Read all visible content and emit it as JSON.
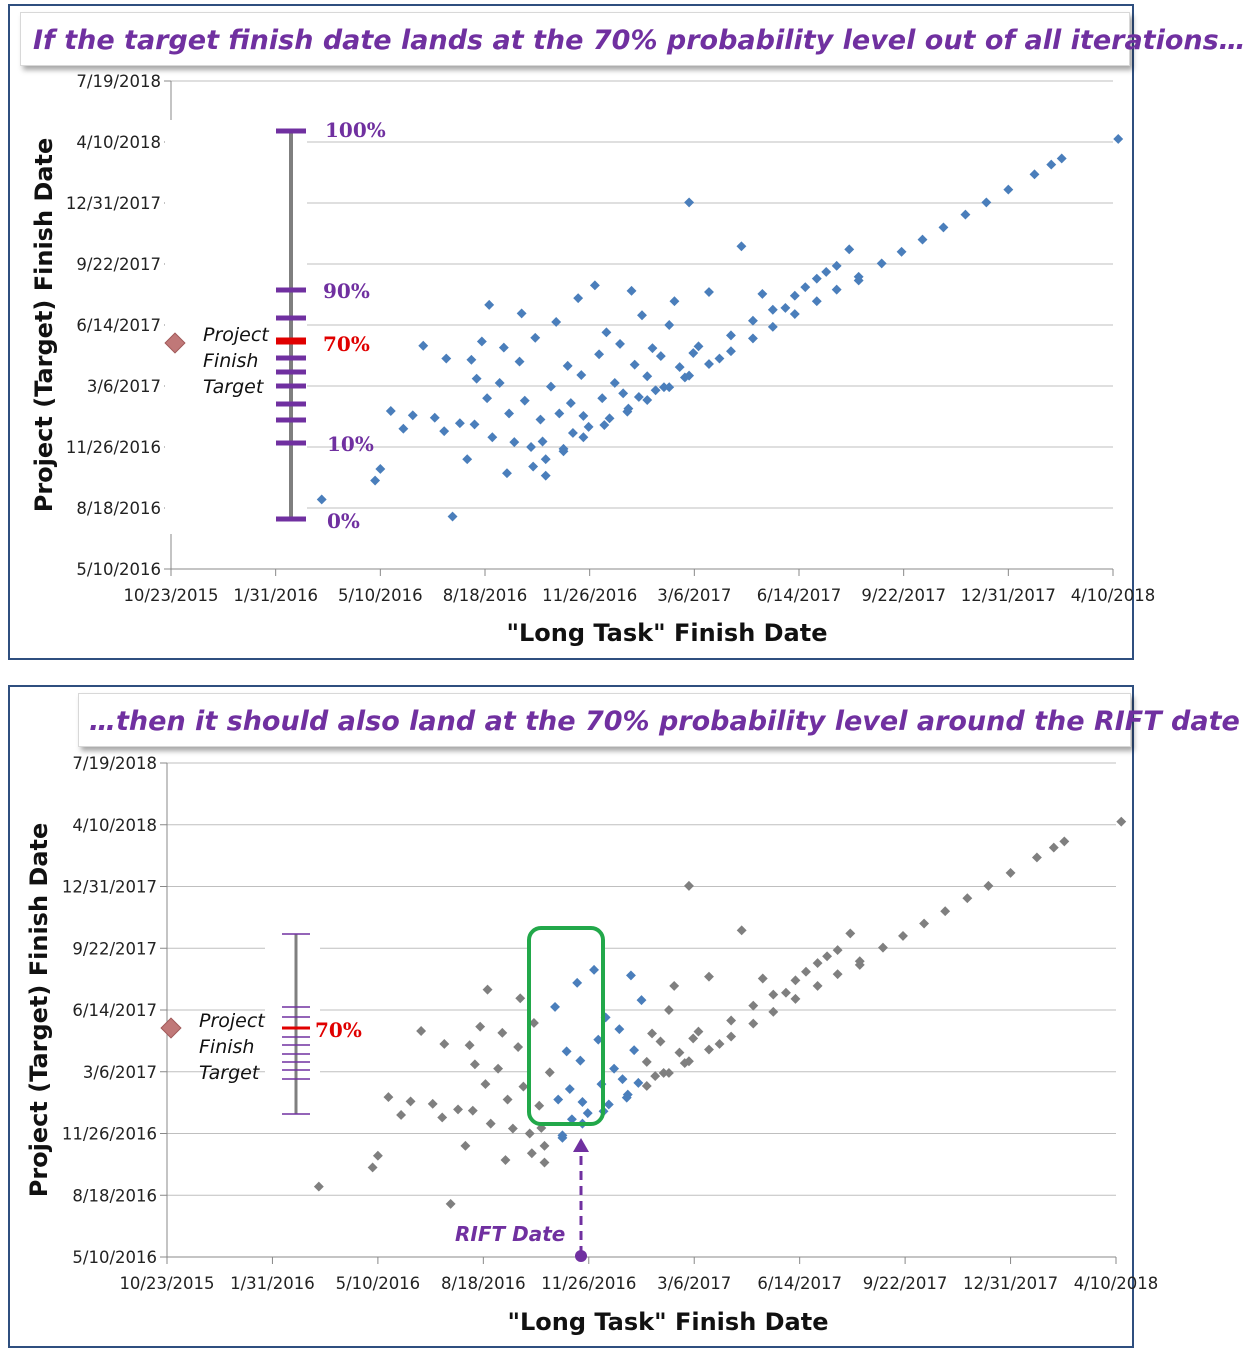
{
  "colors": {
    "blue": "#4a7ebb",
    "gray": "#7f7f7f",
    "purple": "#7030a0",
    "red": "#e00000",
    "green": "#22a84a",
    "marker": "#c07878",
    "frame": "#2f4f7f"
  },
  "panel1": {
    "banner": "If the target finish date lands at the 70% probability level out of all iterations…",
    "target_label": [
      "Project",
      "Finish",
      "Target"
    ],
    "percent_labels": {
      "p100": "100%",
      "p90": "90%",
      "p70": "70%",
      "p10": "10%",
      "p0": "0%"
    }
  },
  "panel2": {
    "banner": "…then it should also land at the 70% probability level around the RIFT date",
    "target_label": [
      "Project",
      "Finish",
      "Target"
    ],
    "percent_label": "70%",
    "rift_label": "RIFT Date"
  },
  "chart_data": [
    {
      "type": "scatter",
      "title": "",
      "xlabel": "\"Long Task\" Finish Date",
      "ylabel": "Project (Target) Finish Date",
      "x_ticks": [
        "10/23/2015",
        "1/31/2016",
        "5/10/2016",
        "8/18/2016",
        "11/26/2016",
        "3/6/2017",
        "6/14/2017",
        "9/22/2017",
        "12/31/2017",
        "4/10/2018"
      ],
      "y_ticks": [
        "5/10/2016",
        "8/18/2016",
        "11/26/2016",
        "3/6/2017",
        "6/14/2017",
        "9/22/2017",
        "12/31/2017",
        "4/10/2018",
        "7/19/2018"
      ],
      "xlim": [
        "10/23/2015",
        "4/10/2018"
      ],
      "ylim": [
        "5/10/2016",
        "7/19/2018"
      ],
      "grid": "horizontal",
      "target_marker": {
        "y": "5/21/2017"
      },
      "target_percentile": 70,
      "series": [
        {
          "points": [
            [
              "3/15/2016",
              "9/1/2016"
            ],
            [
              "5/5/2016",
              "10/2/2016"
            ],
            [
              "5/10/2016",
              "10/21/2016"
            ],
            [
              "5/20/2016",
              "1/24/2017"
            ],
            [
              "6/1/2016",
              "12/26/2016"
            ],
            [
              "6/10/2016",
              "1/17/2017"
            ],
            [
              "6/20/2016",
              "5/11/2017"
            ],
            [
              "7/1/2016",
              "1/13/2017"
            ],
            [
              "7/10/2016",
              "12/22/2016"
            ],
            [
              "7/12/2016",
              "4/20/2017"
            ],
            [
              "7/18/2016",
              "8/4/2016"
            ],
            [
              "7/25/2016",
              "1/4/2017"
            ],
            [
              "8/1/2016",
              "11/6/2016"
            ],
            [
              "8/5/2016",
              "4/18/2017"
            ],
            [
              "8/8/2016",
              "1/2/2017"
            ],
            [
              "8/10/2016",
              "3/18/2017"
            ],
            [
              "8/15/2016",
              "5/18/2017"
            ],
            [
              "8/20/2016",
              "2/14/2017"
            ],
            [
              "8/22/2016",
              "7/17/2017"
            ],
            [
              "8/25/2016",
              "12/12/2016"
            ],
            [
              "9/1/2016",
              "3/11/2017"
            ],
            [
              "9/5/2016",
              "5/8/2017"
            ],
            [
              "9/8/2016",
              "10/14/2016"
            ],
            [
              "9/10/2016",
              "1/20/2017"
            ],
            [
              "9/15/2016",
              "12/4/2016"
            ],
            [
              "9/20/2016",
              "4/15/2017"
            ],
            [
              "9/22/2016",
              "7/3/2017"
            ],
            [
              "9/25/2016",
              "2/10/2017"
            ],
            [
              "10/1/2016",
              "11/26/2016"
            ],
            [
              "10/5/2016",
              "5/24/2017"
            ],
            [
              "10/10/2016",
              "1/10/2017"
            ],
            [
              "10/12/2016",
              "12/5/2016"
            ],
            [
              "10/15/2016",
              "10/10/2016"
            ],
            [
              "10/20/2016",
              "3/5/2017"
            ],
            [
              "10/25/2016",
              "6/19/2017"
            ],
            [
              "10/28/2016",
              "1/20/2017"
            ],
            [
              "11/1/2016",
              "11/19/2016"
            ],
            [
              "11/5/2016",
              "4/8/2017"
            ],
            [
              "11/8/2016",
              "2/6/2017"
            ],
            [
              "11/10/2016",
              "12/19/2016"
            ],
            [
              "11/15/2016",
              "7/28/2017"
            ],
            [
              "11/18/2016",
              "3/24/2017"
            ],
            [
              "11/20/2016",
              "1/16/2017"
            ],
            [
              "11/25/2016",
              "12/29/2016"
            ],
            [
              "12/1/2016",
              "8/18/2017"
            ],
            [
              "12/5/2016",
              "4/27/2017"
            ],
            [
              "12/8/2016",
              "2/14/2017"
            ],
            [
              "12/12/2016",
              "6/2/2017"
            ],
            [
              "12/15/2016",
              "1/12/2017"
            ],
            [
              "12/20/2016",
              "3/11/2017"
            ],
            [
              "12/25/2016",
              "5/14/2017"
            ],
            [
              "12/28/2016",
              "2/22/2017"
            ],
            [
              "1/2/2017",
              "1/28/2017"
            ],
            [
              "1/5/2017",
              "8/9/2017"
            ],
            [
              "1/8/2017",
              "4/10/2017"
            ],
            [
              "1/12/2017",
              "2/16/2017"
            ],
            [
              "1/15/2017",
              "6/30/2017"
            ],
            [
              "1/20/2017",
              "3/22/2017"
            ],
            [
              "1/25/2017",
              "5/7/2017"
            ],
            [
              "1/28/2017",
              "2/27/2017"
            ],
            [
              "2/2/2017",
              "4/24/2017"
            ],
            [
              "2/5/2017",
              "3/4/2017"
            ],
            [
              "2/10/2017",
              "6/14/2017"
            ],
            [
              "2/15/2017",
              "7/23/2017"
            ],
            [
              "2/20/2017",
              "4/6/2017"
            ],
            [
              "2/25/2017",
              "3/20/2017"
            ],
            [
              "3/1/2017",
              "1/1/2018"
            ],
            [
              "3/5/2017",
              "4/29/2017"
            ],
            [
              "3/10/2017",
              "5/10/2017"
            ],
            [
              "3/20/2017",
              "8/7/2017"
            ],
            [
              "3/30/2017",
              "4/20/2017"
            ],
            [
              "4/10/2017",
              "5/28/2017"
            ],
            [
              "4/20/2017",
              "10/21/2017"
            ],
            [
              "5/1/2017",
              "6/21/2017"
            ],
            [
              "5/10/2017",
              "8/4/2017"
            ],
            [
              "5/20/2017",
              "7/9/2017"
            ],
            [
              "6/1/2017",
              "7/12/2017"
            ],
            [
              "6/10/2017",
              "8/1/2017"
            ],
            [
              "6/20/2017",
              "8/15/2017"
            ],
            [
              "7/1/2017",
              "8/29/2017"
            ],
            [
              "7/10/2017",
              "9/9/2017"
            ],
            [
              "7/20/2017",
              "9/19/2017"
            ],
            [
              "8/1/2017",
              "10/16/2017"
            ],
            [
              "8/10/2017",
              "8/26/2017"
            ],
            [
              "10/3/2016",
              "10/25/2016"
            ],
            [
              "10/15/2016",
              "11/6/2016"
            ],
            [
              "11/1/2016",
              "11/23/2016"
            ],
            [
              "11/20/2016",
              "12/12/2016"
            ],
            [
              "12/10/2016",
              "1/1/2017"
            ],
            [
              "1/1/2017",
              "1/23/2017"
            ],
            [
              "1/20/2017",
              "2/11/2017"
            ],
            [
              "2/10/2017",
              "3/4/2017"
            ],
            [
              "3/1/2017",
              "3/23/2017"
            ],
            [
              "3/20/2017",
              "4/11/2017"
            ],
            [
              "4/10/2017",
              "5/2/2017"
            ],
            [
              "5/1/2017",
              "5/23/2017"
            ],
            [
              "5/20/2017",
              "6/11/2017"
            ],
            [
              "6/10/2017",
              "7/2/2017"
            ],
            [
              "7/1/2017",
              "7/23/2017"
            ],
            [
              "7/20/2017",
              "8/11/2017"
            ],
            [
              "8/10/2017",
              "9/1/2017"
            ],
            [
              "9/1/2017",
              "9/23/2017"
            ],
            [
              "9/20/2017",
              "10/12/2017"
            ],
            [
              "10/10/2017",
              "11/1/2017"
            ],
            [
              "10/30/2017",
              "11/21/2017"
            ],
            [
              "11/20/2017",
              "12/12/2017"
            ],
            [
              "12/10/2017",
              "1/1/2018"
            ],
            [
              "12/31/2017",
              "1/22/2018"
            ],
            [
              "1/25/2018",
              "2/16/2018"
            ],
            [
              "2/10/2018",
              "3/4/2018"
            ],
            [
              "2/20/2018",
              "3/14/2018"
            ],
            [
              "4/15/2018",
              "4/15/2018"
            ]
          ]
        }
      ]
    },
    {
      "type": "scatter",
      "title": "",
      "xlabel": "\"Long Task\" Finish Date",
      "ylabel": "Project (Target) Finish Date",
      "x_ticks": [
        "10/23/2015",
        "1/31/2016",
        "5/10/2016",
        "8/18/2016",
        "11/26/2016",
        "3/6/2017",
        "6/14/2017",
        "9/22/2017",
        "12/31/2017",
        "4/10/2018"
      ],
      "y_ticks": [
        "5/10/2016",
        "8/18/2016",
        "11/26/2016",
        "3/6/2017",
        "6/14/2017",
        "9/22/2017",
        "12/31/2017",
        "4/10/2018",
        "7/19/2018"
      ],
      "xlim": [
        "10/23/2015",
        "4/10/2018"
      ],
      "ylim": [
        "5/10/2016",
        "7/19/2018"
      ],
      "grid": "horizontal",
      "target_marker": {
        "y": "5/21/2017"
      },
      "target_percentile": 70,
      "rift_date": "12/5/2016",
      "highlight_window": [
        "10/25/2016",
        "1/15/2017"
      ]
    }
  ]
}
